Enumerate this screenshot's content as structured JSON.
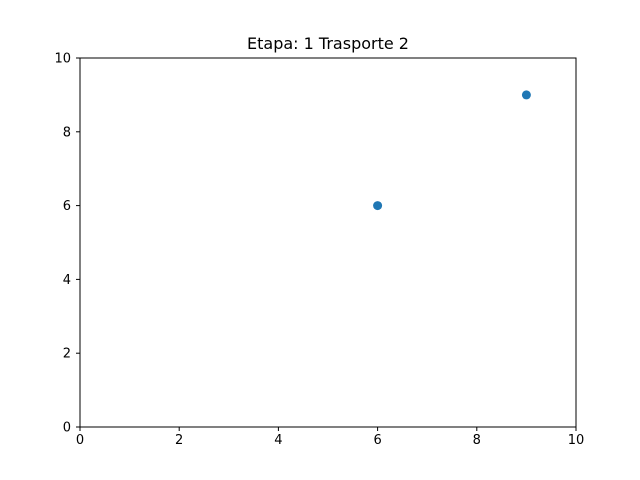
{
  "chart_data": {
    "type": "scatter",
    "title": "Etapa: 1 Trasporte 2",
    "xlabel": "",
    "ylabel": "",
    "xlim": [
      0,
      10
    ],
    "ylim": [
      0,
      10
    ],
    "x_ticks": [
      0,
      2,
      4,
      6,
      8,
      10
    ],
    "y_ticks": [
      0,
      2,
      4,
      6,
      8,
      10
    ],
    "grid": false,
    "series": [
      {
        "color": "#1f77b4",
        "points": [
          {
            "x": 6,
            "y": 6
          },
          {
            "x": 9,
            "y": 9
          }
        ]
      }
    ]
  }
}
